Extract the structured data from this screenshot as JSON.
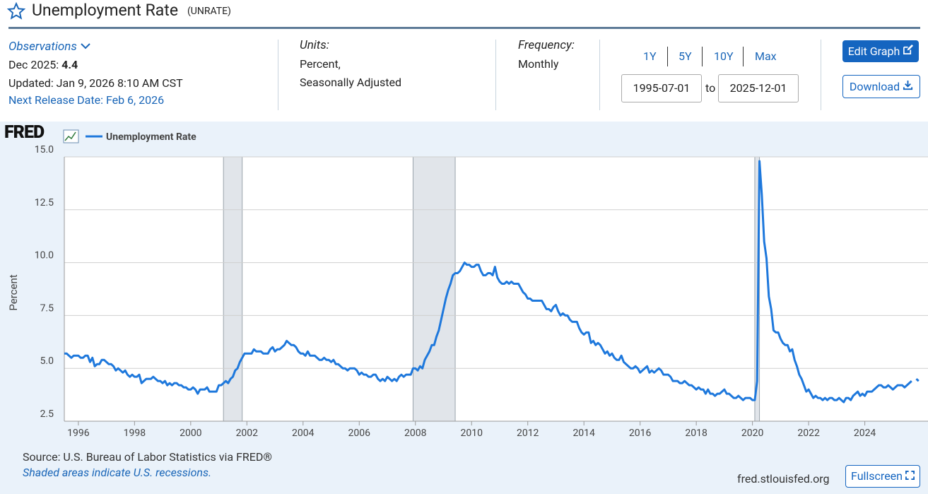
{
  "header": {
    "title": "Unemployment Rate",
    "series_id": "(UNRATE)"
  },
  "observations": {
    "label": "Observations",
    "date": "Dec 2025:",
    "value": "4.4",
    "updated": "Updated: Jan 9, 2026 8:10 AM CST",
    "next_release": "Next Release Date: Feb 6, 2026"
  },
  "units": {
    "label": "Units:",
    "line1": "Percent,",
    "line2": "Seasonally Adjusted"
  },
  "frequency": {
    "label": "Frequency:",
    "value": "Monthly"
  },
  "range": {
    "buttons": [
      "1Y",
      "5Y",
      "10Y",
      "Max"
    ],
    "start": "1995-07-01",
    "to": "to",
    "end": "2025-12-01"
  },
  "actions": {
    "edit": "Edit Graph",
    "download": "Download"
  },
  "logo": "FRED",
  "chart_data": {
    "type": "line",
    "y_label": "Percent",
    "x": [
      "1995-07-01",
      "1995-08-01",
      "1995-09-01",
      "1995-10-01",
      "1995-11-01",
      "1995-12-01",
      "1996-01-01",
      "1996-02-01",
      "1996-03-01",
      "1996-04-01",
      "1996-05-01",
      "1996-06-01",
      "1996-07-01",
      "1996-08-01",
      "1996-09-01",
      "1996-10-01",
      "1996-11-01",
      "1996-12-01",
      "1997-01-01",
      "1997-02-01",
      "1997-03-01",
      "1997-04-01",
      "1997-05-01",
      "1997-06-01",
      "1997-07-01",
      "1997-08-01",
      "1997-09-01",
      "1997-10-01",
      "1997-11-01",
      "1997-12-01",
      "1998-01-01",
      "1998-02-01",
      "1998-03-01",
      "1998-04-01",
      "1998-05-01",
      "1998-06-01",
      "1998-07-01",
      "1998-08-01",
      "1998-09-01",
      "1998-10-01",
      "1998-11-01",
      "1998-12-01",
      "1999-01-01",
      "1999-02-01",
      "1999-03-01",
      "1999-04-01",
      "1999-05-01",
      "1999-06-01",
      "1999-07-01",
      "1999-08-01",
      "1999-09-01",
      "1999-10-01",
      "1999-11-01",
      "1999-12-01",
      "2000-01-01",
      "2000-02-01",
      "2000-03-01",
      "2000-04-01",
      "2000-05-01",
      "2000-06-01",
      "2000-07-01",
      "2000-08-01",
      "2000-09-01",
      "2000-10-01",
      "2000-11-01",
      "2000-12-01",
      "2001-01-01",
      "2001-02-01",
      "2001-03-01",
      "2001-04-01",
      "2001-05-01",
      "2001-06-01",
      "2001-07-01",
      "2001-08-01",
      "2001-09-01",
      "2001-10-01",
      "2001-11-01",
      "2001-12-01",
      "2002-01-01",
      "2002-02-01",
      "2002-03-01",
      "2002-04-01",
      "2002-05-01",
      "2002-06-01",
      "2002-07-01",
      "2002-08-01",
      "2002-09-01",
      "2002-10-01",
      "2002-11-01",
      "2002-12-01",
      "2003-01-01",
      "2003-02-01",
      "2003-03-01",
      "2003-04-01",
      "2003-05-01",
      "2003-06-01",
      "2003-07-01",
      "2003-08-01",
      "2003-09-01",
      "2003-10-01",
      "2003-11-01",
      "2003-12-01",
      "2004-01-01",
      "2004-02-01",
      "2004-03-01",
      "2004-04-01",
      "2004-05-01",
      "2004-06-01",
      "2004-07-01",
      "2004-08-01",
      "2004-09-01",
      "2004-10-01",
      "2004-11-01",
      "2004-12-01",
      "2005-01-01",
      "2005-02-01",
      "2005-03-01",
      "2005-04-01",
      "2005-05-01",
      "2005-06-01",
      "2005-07-01",
      "2005-08-01",
      "2005-09-01",
      "2005-10-01",
      "2005-11-01",
      "2005-12-01",
      "2006-01-01",
      "2006-02-01",
      "2006-03-01",
      "2006-04-01",
      "2006-05-01",
      "2006-06-01",
      "2006-07-01",
      "2006-08-01",
      "2006-09-01",
      "2006-10-01",
      "2006-11-01",
      "2006-12-01",
      "2007-01-01",
      "2007-02-01",
      "2007-03-01",
      "2007-04-01",
      "2007-05-01",
      "2007-06-01",
      "2007-07-01",
      "2007-08-01",
      "2007-09-01",
      "2007-10-01",
      "2007-11-01",
      "2007-12-01",
      "2008-01-01",
      "2008-02-01",
      "2008-03-01",
      "2008-04-01",
      "2008-05-01",
      "2008-06-01",
      "2008-07-01",
      "2008-08-01",
      "2008-09-01",
      "2008-10-01",
      "2008-11-01",
      "2008-12-01",
      "2009-01-01",
      "2009-02-01",
      "2009-03-01",
      "2009-04-01",
      "2009-05-01",
      "2009-06-01",
      "2009-07-01",
      "2009-08-01",
      "2009-09-01",
      "2009-10-01",
      "2009-11-01",
      "2009-12-01",
      "2010-01-01",
      "2010-02-01",
      "2010-03-01",
      "2010-04-01",
      "2010-05-01",
      "2010-06-01",
      "2010-07-01",
      "2010-08-01",
      "2010-09-01",
      "2010-10-01",
      "2010-11-01",
      "2010-12-01",
      "2011-01-01",
      "2011-02-01",
      "2011-03-01",
      "2011-04-01",
      "2011-05-01",
      "2011-06-01",
      "2011-07-01",
      "2011-08-01",
      "2011-09-01",
      "2011-10-01",
      "2011-11-01",
      "2011-12-01",
      "2012-01-01",
      "2012-02-01",
      "2012-03-01",
      "2012-04-01",
      "2012-05-01",
      "2012-06-01",
      "2012-07-01",
      "2012-08-01",
      "2012-09-01",
      "2012-10-01",
      "2012-11-01",
      "2012-12-01",
      "2013-01-01",
      "2013-02-01",
      "2013-03-01",
      "2013-04-01",
      "2013-05-01",
      "2013-06-01",
      "2013-07-01",
      "2013-08-01",
      "2013-09-01",
      "2013-10-01",
      "2013-11-01",
      "2013-12-01",
      "2014-01-01",
      "2014-02-01",
      "2014-03-01",
      "2014-04-01",
      "2014-05-01",
      "2014-06-01",
      "2014-07-01",
      "2014-08-01",
      "2014-09-01",
      "2014-10-01",
      "2014-11-01",
      "2014-12-01",
      "2015-01-01",
      "2015-02-01",
      "2015-03-01",
      "2015-04-01",
      "2015-05-01",
      "2015-06-01",
      "2015-07-01",
      "2015-08-01",
      "2015-09-01",
      "2015-10-01",
      "2015-11-01",
      "2015-12-01",
      "2016-01-01",
      "2016-02-01",
      "2016-03-01",
      "2016-04-01",
      "2016-05-01",
      "2016-06-01",
      "2016-07-01",
      "2016-08-01",
      "2016-09-01",
      "2016-10-01",
      "2016-11-01",
      "2016-12-01",
      "2017-01-01",
      "2017-02-01",
      "2017-03-01",
      "2017-04-01",
      "2017-05-01",
      "2017-06-01",
      "2017-07-01",
      "2017-08-01",
      "2017-09-01",
      "2017-10-01",
      "2017-11-01",
      "2017-12-01",
      "2018-01-01",
      "2018-02-01",
      "2018-03-01",
      "2018-04-01",
      "2018-05-01",
      "2018-06-01",
      "2018-07-01",
      "2018-08-01",
      "2018-09-01",
      "2018-10-01",
      "2018-11-01",
      "2018-12-01",
      "2019-01-01",
      "2019-02-01",
      "2019-03-01",
      "2019-04-01",
      "2019-05-01",
      "2019-06-01",
      "2019-07-01",
      "2019-08-01",
      "2019-09-01",
      "2019-10-01",
      "2019-11-01",
      "2019-12-01",
      "2020-01-01",
      "2020-02-01",
      "2020-03-01",
      "2020-04-01",
      "2020-05-01",
      "2020-06-01",
      "2020-07-01",
      "2020-08-01",
      "2020-09-01",
      "2020-10-01",
      "2020-11-01",
      "2020-12-01",
      "2021-01-01",
      "2021-02-01",
      "2021-03-01",
      "2021-04-01",
      "2021-05-01",
      "2021-06-01",
      "2021-07-01",
      "2021-08-01",
      "2021-09-01",
      "2021-10-01",
      "2021-11-01",
      "2021-12-01",
      "2022-01-01",
      "2022-02-01",
      "2022-03-01",
      "2022-04-01",
      "2022-05-01",
      "2022-06-01",
      "2022-07-01",
      "2022-08-01",
      "2022-09-01",
      "2022-10-01",
      "2022-11-01",
      "2022-12-01",
      "2023-01-01",
      "2023-02-01",
      "2023-03-01",
      "2023-04-01",
      "2023-05-01",
      "2023-06-01",
      "2023-07-01",
      "2023-08-01",
      "2023-09-01",
      "2023-10-01",
      "2023-11-01",
      "2023-12-01",
      "2024-01-01",
      "2024-02-01",
      "2024-03-01",
      "2024-04-01",
      "2024-05-01",
      "2024-06-01",
      "2024-07-01",
      "2024-08-01",
      "2024-09-01",
      "2024-10-01",
      "2024-11-01",
      "2024-12-01",
      "2025-01-01",
      "2025-02-01",
      "2025-03-01",
      "2025-04-01",
      "2025-05-01",
      "2025-06-01",
      "2025-07-01",
      "2025-08-01",
      "2025-09-01",
      "2025-10-01",
      "2025-11-01",
      "2025-12-01"
    ],
    "series": [
      {
        "name": "Unemployment Rate",
        "color": "#1e78dc",
        "values": [
          5.7,
          5.7,
          5.6,
          5.5,
          5.6,
          5.6,
          5.6,
          5.5,
          5.5,
          5.6,
          5.6,
          5.3,
          5.5,
          5.1,
          5.2,
          5.2,
          5.4,
          5.4,
          5.3,
          5.2,
          5.2,
          5.1,
          4.9,
          5.0,
          4.9,
          4.8,
          4.9,
          4.7,
          4.6,
          4.7,
          4.6,
          4.6,
          4.7,
          4.3,
          4.4,
          4.5,
          4.5,
          4.5,
          4.6,
          4.5,
          4.4,
          4.4,
          4.3,
          4.4,
          4.2,
          4.3,
          4.2,
          4.3,
          4.3,
          4.2,
          4.2,
          4.1,
          4.1,
          4.0,
          4.0,
          4.1,
          4.0,
          3.8,
          4.0,
          4.0,
          4.0,
          4.1,
          3.9,
          3.9,
          3.9,
          3.9,
          4.2,
          4.2,
          4.3,
          4.4,
          4.3,
          4.5,
          4.6,
          4.9,
          5.0,
          5.3,
          5.5,
          5.7,
          5.7,
          5.7,
          5.7,
          5.9,
          5.8,
          5.8,
          5.8,
          5.7,
          5.7,
          5.7,
          5.9,
          6.0,
          5.8,
          5.9,
          5.9,
          6.0,
          6.1,
          6.3,
          6.2,
          6.1,
          6.1,
          6.0,
          5.8,
          5.7,
          5.7,
          5.6,
          5.8,
          5.6,
          5.6,
          5.6,
          5.5,
          5.4,
          5.4,
          5.5,
          5.4,
          5.4,
          5.3,
          5.4,
          5.2,
          5.2,
          5.1,
          5.0,
          5.0,
          4.9,
          5.0,
          5.0,
          5.0,
          4.9,
          4.7,
          4.8,
          4.7,
          4.7,
          4.6,
          4.6,
          4.7,
          4.7,
          4.5,
          4.4,
          4.5,
          4.4,
          4.6,
          4.5,
          4.4,
          4.5,
          4.4,
          4.6,
          4.7,
          4.6,
          4.7,
          4.7,
          4.7,
          5.0,
          5.0,
          4.9,
          5.1,
          5.0,
          5.4,
          5.6,
          5.8,
          6.1,
          6.1,
          6.5,
          6.8,
          7.3,
          7.8,
          8.3,
          8.7,
          9.0,
          9.4,
          9.5,
          9.5,
          9.6,
          9.8,
          10.0,
          9.9,
          9.9,
          9.8,
          9.8,
          9.9,
          9.9,
          9.6,
          9.4,
          9.4,
          9.5,
          9.5,
          9.4,
          9.8,
          9.3,
          9.1,
          9.0,
          9.0,
          9.1,
          9.0,
          9.1,
          9.0,
          9.0,
          9.0,
          8.8,
          8.6,
          8.5,
          8.3,
          8.3,
          8.2,
          8.2,
          8.2,
          8.2,
          8.2,
          8.0,
          7.8,
          7.8,
          7.7,
          7.9,
          8.0,
          7.7,
          7.5,
          7.6,
          7.5,
          7.5,
          7.3,
          7.2,
          7.2,
          7.2,
          6.9,
          6.7,
          6.6,
          6.7,
          6.7,
          6.2,
          6.3,
          6.1,
          6.2,
          6.1,
          5.9,
          5.7,
          5.8,
          5.6,
          5.7,
          5.5,
          5.4,
          5.4,
          5.6,
          5.3,
          5.2,
          5.1,
          5.0,
          5.0,
          5.1,
          5.0,
          4.8,
          4.9,
          5.0,
          5.1,
          4.8,
          4.9,
          4.8,
          4.9,
          5.0,
          4.9,
          4.7,
          4.7,
          4.7,
          4.6,
          4.4,
          4.4,
          4.4,
          4.3,
          4.3,
          4.4,
          4.3,
          4.2,
          4.2,
          4.1,
          4.0,
          4.1,
          4.0,
          4.0,
          3.8,
          4.0,
          3.8,
          3.8,
          3.7,
          3.8,
          3.8,
          3.9,
          4.0,
          3.8,
          3.8,
          3.7,
          3.6,
          3.6,
          3.7,
          3.6,
          3.5,
          3.6,
          3.6,
          3.6,
          3.5,
          3.5,
          4.4,
          14.8,
          13.2,
          11.0,
          10.2,
          8.4,
          7.8,
          6.8,
          6.7,
          6.7,
          6.4,
          6.2,
          6.1,
          6.1,
          5.8,
          5.9,
          5.4,
          5.1,
          4.7,
          4.5,
          4.2,
          3.9,
          4.0,
          3.8,
          3.6,
          3.7,
          3.6,
          3.6,
          3.5,
          3.6,
          3.5,
          3.6,
          3.6,
          3.5,
          3.5,
          3.6,
          3.5,
          3.4,
          3.6,
          3.6,
          3.5,
          3.7,
          3.8,
          3.9,
          3.7,
          3.8,
          3.7,
          3.9,
          3.9,
          3.9,
          4.0,
          4.1,
          4.2,
          4.2,
          4.1,
          4.1,
          4.2,
          4.1,
          4.0,
          4.1,
          4.2,
          4.2,
          4.2,
          4.1,
          4.2,
          4.3,
          4.4,
          null,
          4.5,
          4.4
        ]
      }
    ],
    "recessions": [
      [
        "2001-03-01",
        "2001-11-01"
      ],
      [
        "2007-12-01",
        "2009-06-01"
      ],
      [
        "2020-02-01",
        "2020-04-01"
      ]
    ],
    "recession_color": "#e1e5ea",
    "xlim": [
      "1995-07-01",
      "2026-04-01"
    ],
    "xticks": [
      {
        "value": "1996-01-01",
        "label": "1996"
      },
      {
        "value": "1998-01-01",
        "label": "1998"
      },
      {
        "value": "2000-01-01",
        "label": "2000"
      },
      {
        "value": "2002-01-01",
        "label": "2002"
      },
      {
        "value": "2004-01-01",
        "label": "2004"
      },
      {
        "value": "2006-01-01",
        "label": "2006"
      },
      {
        "value": "2008-01-01",
        "label": "2008"
      },
      {
        "value": "2010-01-01",
        "label": "2010"
      },
      {
        "value": "2012-01-01",
        "label": "2012"
      },
      {
        "value": "2014-01-01",
        "label": "2014"
      },
      {
        "value": "2016-01-01",
        "label": "2016"
      },
      {
        "value": "2018-01-01",
        "label": "2018"
      },
      {
        "value": "2020-01-01",
        "label": "2020"
      },
      {
        "value": "2022-01-01",
        "label": "2022"
      },
      {
        "value": "2024-01-01",
        "label": "2024"
      }
    ],
    "ylim": [
      2.5,
      15
    ],
    "yticks": [
      2.5,
      {
        "value": 5,
        "label": "5.0"
      },
      7.5,
      {
        "value": 10,
        "label": "10.0"
      },
      12.5,
      {
        "value": 15,
        "label": "15.0"
      }
    ],
    "grid": true
  },
  "footer": {
    "source": "Source: U.S. Bureau of Labor Statistics via FRED®",
    "note": "Shaded areas indicate U.S. recessions.",
    "site": "fred.stlouisfed.org",
    "fullscreen": "Fullscreen"
  }
}
